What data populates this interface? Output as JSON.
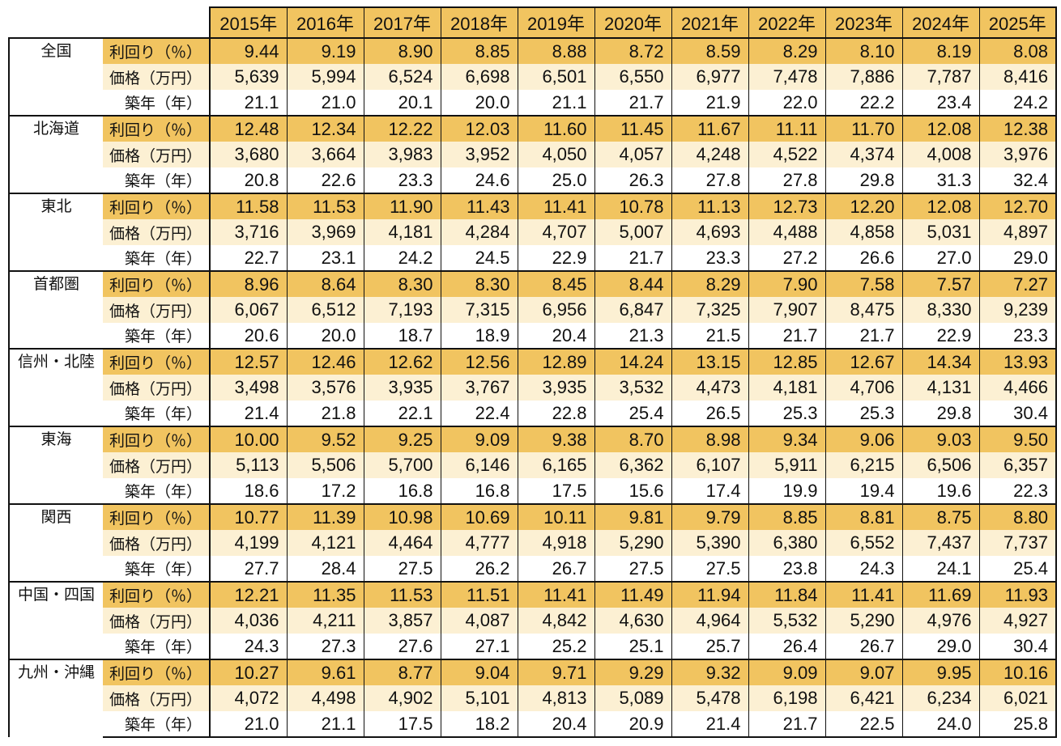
{
  "colors": {
    "gold": "#F1C460",
    "cream": "#FCF0D3",
    "border": "#111111"
  },
  "chart_data": {
    "type": "table",
    "columns": [
      "2015年",
      "2016年",
      "2017年",
      "2018年",
      "2019年",
      "2020年",
      "2021年",
      "2022年",
      "2023年",
      "2024年",
      "2025年"
    ],
    "row_labels": [
      "利回り（％）",
      "価格（万円）",
      "築年（年）"
    ],
    "regions": [
      {
        "name": "全国",
        "rows": [
          [
            "9.44",
            "9.19",
            "8.90",
            "8.85",
            "8.88",
            "8.72",
            "8.59",
            "8.29",
            "8.10",
            "8.19",
            "8.08"
          ],
          [
            "5,639",
            "5,994",
            "6,524",
            "6,698",
            "6,501",
            "6,550",
            "6,977",
            "7,478",
            "7,886",
            "7,787",
            "8,416"
          ],
          [
            "21.1",
            "21.0",
            "20.1",
            "20.0",
            "21.1",
            "21.7",
            "21.9",
            "22.0",
            "22.2",
            "23.4",
            "24.2"
          ]
        ]
      },
      {
        "name": "北海道",
        "rows": [
          [
            "12.48",
            "12.34",
            "12.22",
            "12.03",
            "11.60",
            "11.45",
            "11.67",
            "11.11",
            "11.70",
            "12.08",
            "12.38"
          ],
          [
            "3,680",
            "3,664",
            "3,983",
            "3,952",
            "4,050",
            "4,057",
            "4,248",
            "4,522",
            "4,374",
            "4,008",
            "3,976"
          ],
          [
            "20.8",
            "22.6",
            "23.3",
            "24.6",
            "25.0",
            "26.3",
            "27.8",
            "27.8",
            "29.8",
            "31.3",
            "32.4"
          ]
        ]
      },
      {
        "name": "東北",
        "rows": [
          [
            "11.58",
            "11.53",
            "11.90",
            "11.43",
            "11.41",
            "10.78",
            "11.13",
            "12.73",
            "12.20",
            "12.08",
            "12.70"
          ],
          [
            "3,716",
            "3,969",
            "4,181",
            "4,284",
            "4,707",
            "5,007",
            "4,693",
            "4,488",
            "4,858",
            "5,031",
            "4,897"
          ],
          [
            "22.7",
            "23.1",
            "24.2",
            "24.5",
            "22.9",
            "21.7",
            "23.3",
            "27.2",
            "26.6",
            "27.0",
            "29.0"
          ]
        ]
      },
      {
        "name": "首都圏",
        "rows": [
          [
            "8.96",
            "8.64",
            "8.30",
            "8.30",
            "8.45",
            "8.44",
            "8.29",
            "7.90",
            "7.58",
            "7.57",
            "7.27"
          ],
          [
            "6,067",
            "6,512",
            "7,193",
            "7,315",
            "6,956",
            "6,847",
            "7,325",
            "7,907",
            "8,475",
            "8,330",
            "9,239"
          ],
          [
            "20.6",
            "20.0",
            "18.7",
            "18.9",
            "20.4",
            "21.3",
            "21.5",
            "21.7",
            "21.7",
            "22.9",
            "23.3"
          ]
        ]
      },
      {
        "name": "信州・北陸",
        "rows": [
          [
            "12.57",
            "12.46",
            "12.62",
            "12.56",
            "12.89",
            "14.24",
            "13.15",
            "12.85",
            "12.67",
            "14.34",
            "13.93"
          ],
          [
            "3,498",
            "3,576",
            "3,935",
            "3,767",
            "3,935",
            "3,532",
            "4,473",
            "4,181",
            "4,706",
            "4,131",
            "4,466"
          ],
          [
            "21.4",
            "21.8",
            "22.1",
            "22.4",
            "22.8",
            "25.4",
            "26.5",
            "25.3",
            "25.3",
            "29.8",
            "30.4"
          ]
        ]
      },
      {
        "name": "東海",
        "rows": [
          [
            "10.00",
            "9.52",
            "9.25",
            "9.09",
            "9.38",
            "8.70",
            "8.98",
            "9.34",
            "9.06",
            "9.03",
            "9.50"
          ],
          [
            "5,113",
            "5,506",
            "5,700",
            "6,146",
            "6,165",
            "6,362",
            "6,107",
            "5,911",
            "6,215",
            "6,506",
            "6,357"
          ],
          [
            "18.6",
            "17.2",
            "16.8",
            "16.8",
            "17.5",
            "15.6",
            "17.4",
            "19.9",
            "19.4",
            "19.6",
            "22.3"
          ]
        ]
      },
      {
        "name": "関西",
        "rows": [
          [
            "10.77",
            "11.39",
            "10.98",
            "10.69",
            "10.11",
            "9.81",
            "9.79",
            "8.85",
            "8.81",
            "8.75",
            "8.80"
          ],
          [
            "4,199",
            "4,121",
            "4,464",
            "4,777",
            "4,918",
            "5,290",
            "5,390",
            "6,380",
            "6,552",
            "7,437",
            "7,737"
          ],
          [
            "27.7",
            "28.4",
            "27.5",
            "26.2",
            "26.7",
            "27.5",
            "27.5",
            "23.8",
            "24.3",
            "24.1",
            "25.4"
          ]
        ]
      },
      {
        "name": "中国・四国",
        "rows": [
          [
            "12.21",
            "11.35",
            "11.53",
            "11.51",
            "11.41",
            "11.49",
            "11.94",
            "11.84",
            "11.41",
            "11.69",
            "11.93"
          ],
          [
            "4,036",
            "4,211",
            "3,857",
            "4,087",
            "4,842",
            "4,630",
            "4,964",
            "5,532",
            "5,290",
            "4,976",
            "4,927"
          ],
          [
            "24.3",
            "27.3",
            "27.6",
            "27.1",
            "25.2",
            "25.1",
            "25.7",
            "26.4",
            "26.7",
            "29.0",
            "30.4"
          ]
        ]
      },
      {
        "name": "九州・沖縄",
        "rows": [
          [
            "10.27",
            "9.61",
            "8.77",
            "9.04",
            "9.71",
            "9.29",
            "9.32",
            "9.09",
            "9.07",
            "9.95",
            "10.16"
          ],
          [
            "4,072",
            "4,498",
            "4,902",
            "5,101",
            "4,813",
            "5,089",
            "5,478",
            "6,198",
            "6,421",
            "6,234",
            "6,021"
          ],
          [
            "21.0",
            "21.1",
            "17.5",
            "18.2",
            "20.4",
            "20.9",
            "21.4",
            "21.7",
            "22.5",
            "24.0",
            "25.8"
          ]
        ]
      }
    ]
  }
}
